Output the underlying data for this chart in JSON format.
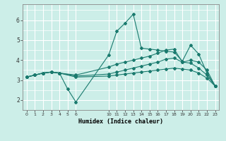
{
  "xlabel": "Humidex (Indice chaleur)",
  "bg_color": "#cceee8",
  "line_color": "#1a7a6e",
  "grid_color": "#ffffff",
  "lines": [
    {
      "x": [
        0,
        1,
        2,
        3,
        4,
        5,
        6,
        10,
        11,
        12,
        13,
        14,
        15,
        16,
        17,
        18,
        19,
        20,
        21,
        22,
        23
      ],
      "y": [
        3.15,
        3.25,
        3.35,
        3.4,
        3.35,
        2.55,
        1.9,
        4.25,
        5.45,
        5.85,
        6.3,
        4.6,
        4.55,
        4.5,
        4.45,
        4.4,
        3.95,
        4.75,
        4.3,
        3.35,
        2.7
      ]
    },
    {
      "x": [
        0,
        1,
        2,
        3,
        4,
        6,
        10,
        11,
        12,
        13,
        14,
        15,
        16,
        17,
        18,
        19,
        20,
        21,
        22,
        23
      ],
      "y": [
        3.15,
        3.25,
        3.35,
        3.4,
        3.35,
        3.25,
        3.65,
        3.8,
        3.9,
        4.0,
        4.1,
        4.2,
        4.35,
        4.5,
        4.55,
        3.9,
        4.0,
        3.9,
        3.5,
        2.7
      ]
    },
    {
      "x": [
        0,
        1,
        2,
        3,
        4,
        6,
        10,
        11,
        12,
        13,
        14,
        15,
        16,
        17,
        18,
        19,
        20,
        21,
        22,
        23
      ],
      "y": [
        3.15,
        3.25,
        3.35,
        3.4,
        3.35,
        3.2,
        3.3,
        3.4,
        3.5,
        3.6,
        3.7,
        3.8,
        3.9,
        4.05,
        4.1,
        3.9,
        3.85,
        3.6,
        3.25,
        2.7
      ]
    },
    {
      "x": [
        0,
        1,
        2,
        3,
        4,
        6,
        10,
        11,
        12,
        13,
        14,
        15,
        16,
        17,
        18,
        19,
        20,
        21,
        22,
        23
      ],
      "y": [
        3.15,
        3.25,
        3.35,
        3.4,
        3.35,
        3.15,
        3.2,
        3.25,
        3.3,
        3.35,
        3.4,
        3.45,
        3.5,
        3.55,
        3.6,
        3.55,
        3.5,
        3.35,
        3.1,
        2.7
      ]
    }
  ],
  "xlim": [
    -0.5,
    23.5
  ],
  "ylim": [
    1.5,
    6.8
  ],
  "xticks": [
    0,
    1,
    2,
    3,
    4,
    5,
    6,
    10,
    11,
    12,
    13,
    14,
    15,
    16,
    17,
    18,
    19,
    20,
    21,
    22,
    23
  ],
  "yticks": [
    2,
    3,
    4,
    5,
    6
  ],
  "figsize": [
    3.2,
    2.0
  ],
  "dpi": 100
}
